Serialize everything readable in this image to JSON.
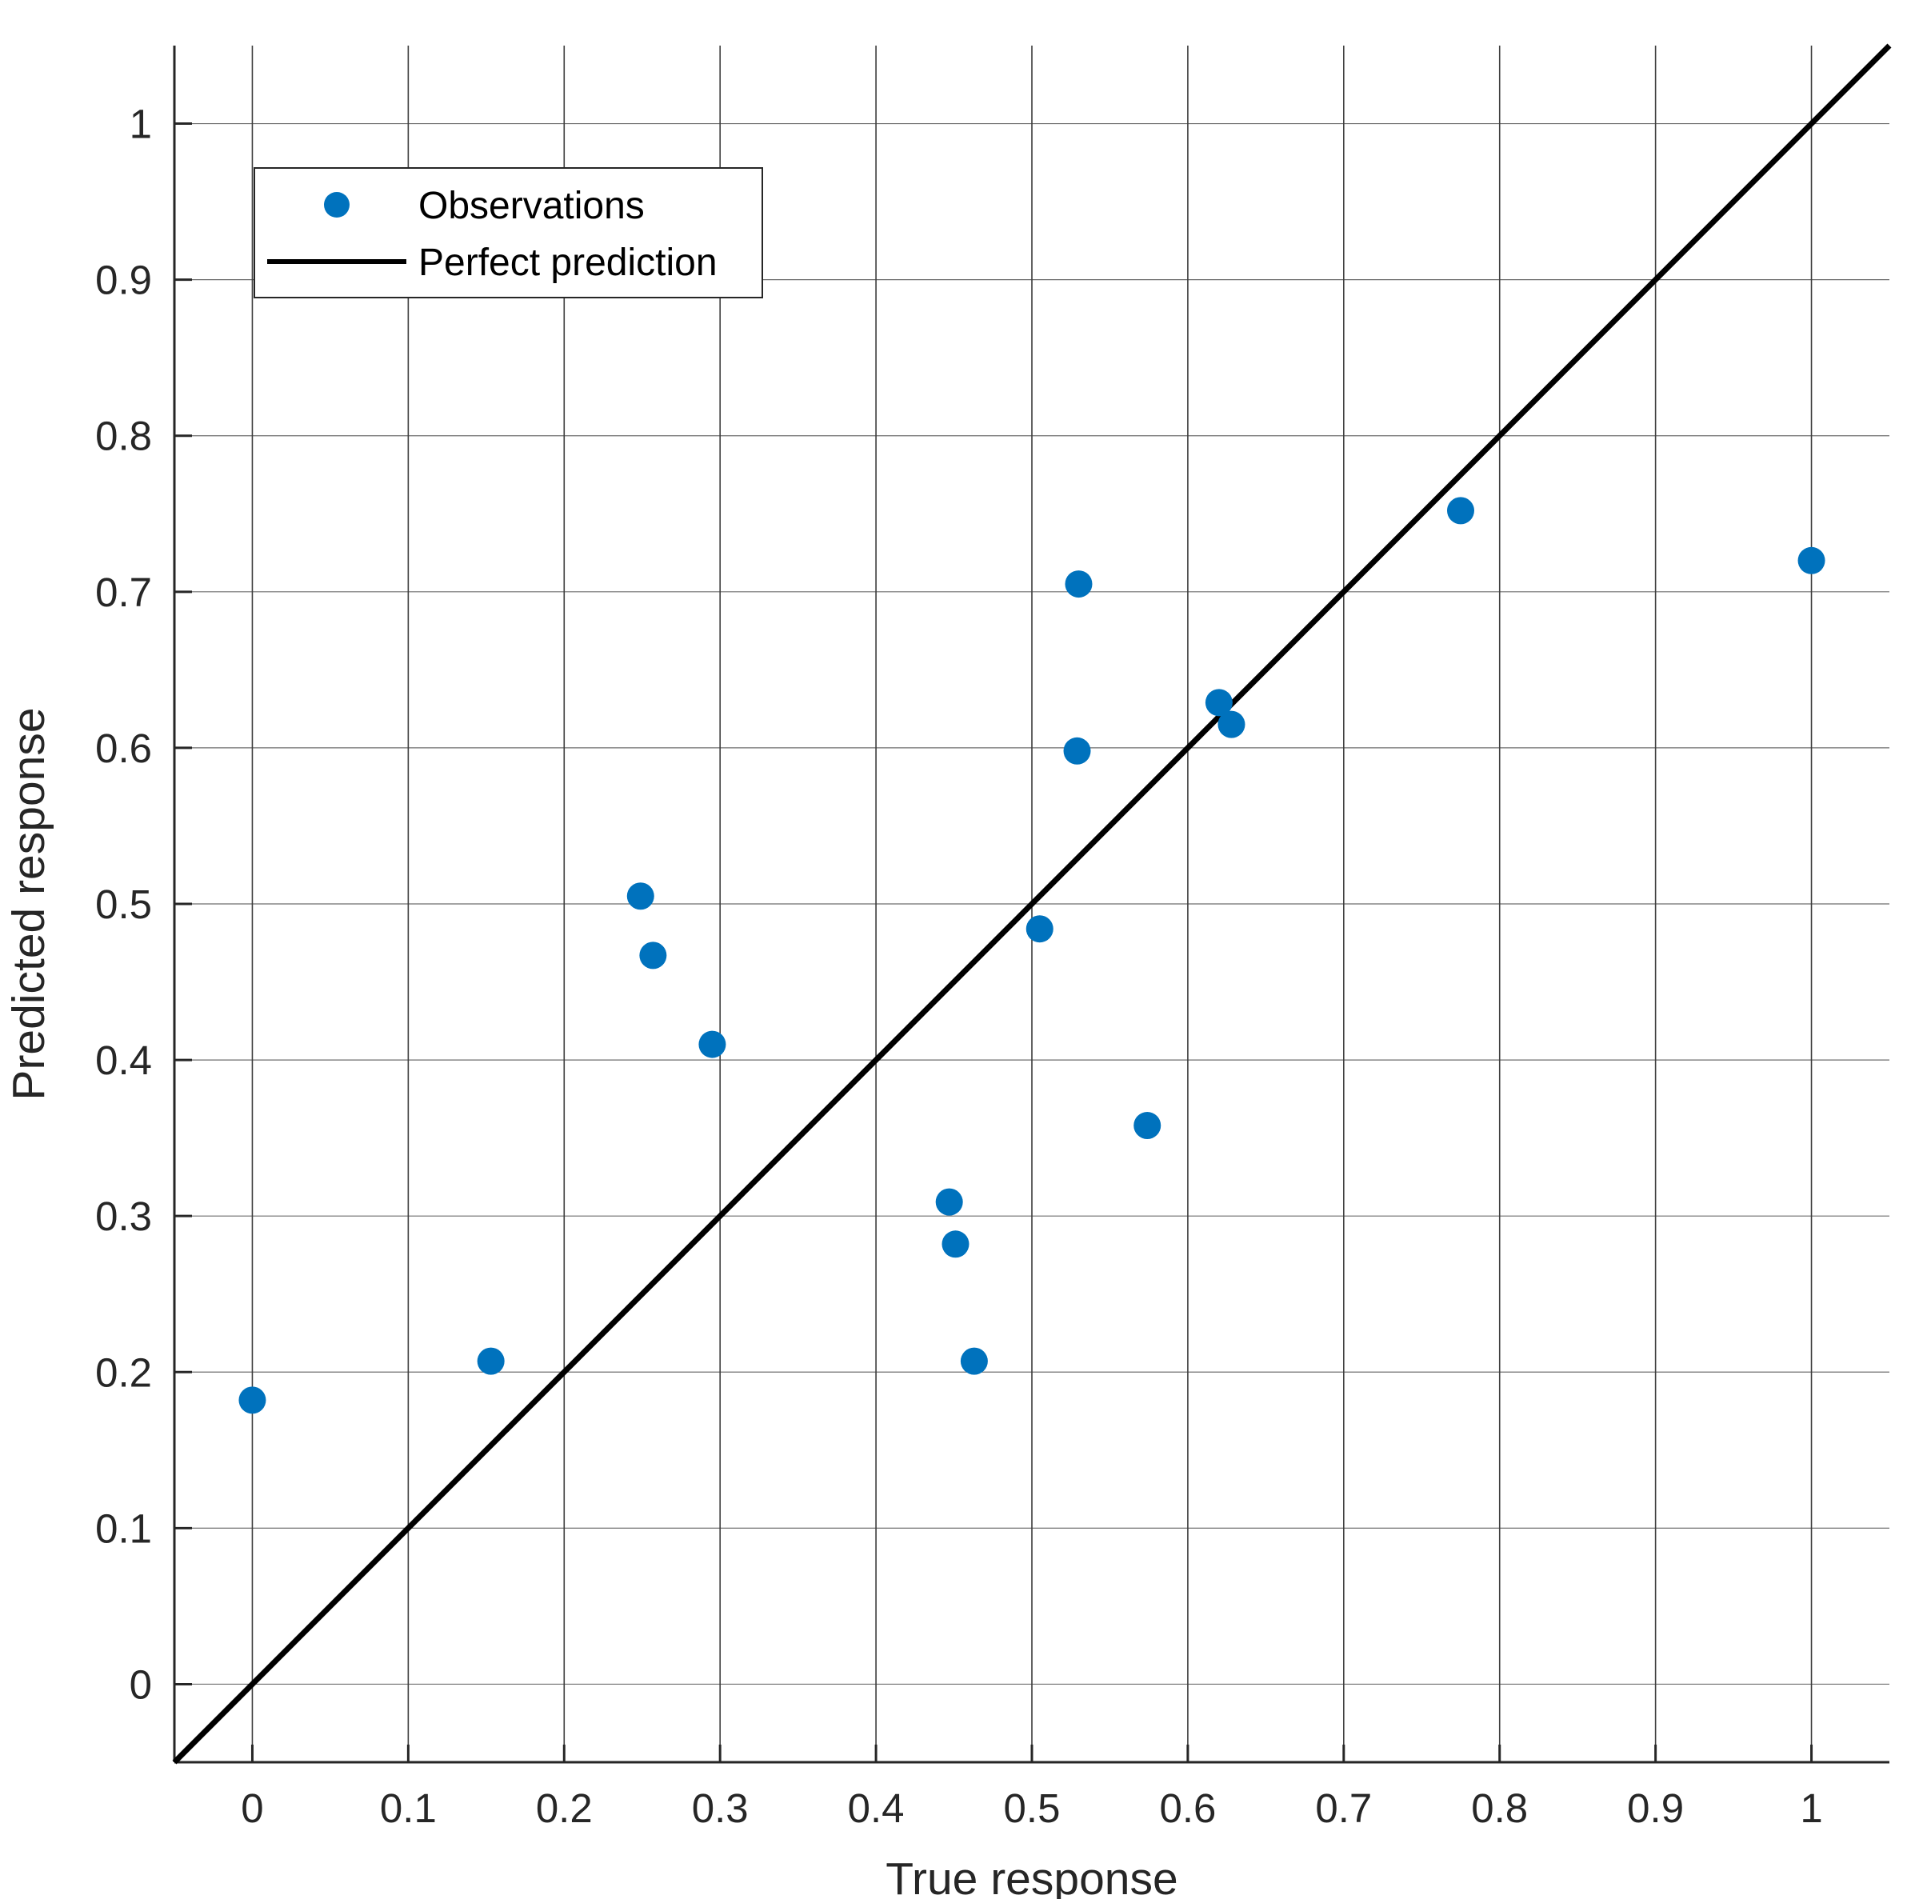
{
  "chart_data": {
    "type": "scatter",
    "xlabel": "True response",
    "ylabel": "Predicted response",
    "xlim": [
      -0.05,
      1.05
    ],
    "ylim": [
      -0.05,
      1.05
    ],
    "x_ticks": [
      "0",
      "0.1",
      "0.2",
      "0.3",
      "0.4",
      "0.5",
      "0.6",
      "0.7",
      "0.8",
      "0.9",
      "1"
    ],
    "y_ticks": [
      "0",
      "0.1",
      "0.2",
      "0.3",
      "0.4",
      "0.5",
      "0.6",
      "0.7",
      "0.8",
      "0.9",
      "1"
    ],
    "grid": true,
    "legend_position": "top-left",
    "series": [
      {
        "name": "Observations",
        "kind": "points",
        "color": "#0072BD",
        "points": [
          [
            0.0,
            0.182
          ],
          [
            0.153,
            0.207
          ],
          [
            0.249,
            0.505
          ],
          [
            0.257,
            0.467
          ],
          [
            0.295,
            0.41
          ],
          [
            0.447,
            0.309
          ],
          [
            0.451,
            0.282
          ],
          [
            0.463,
            0.207
          ],
          [
            0.505,
            0.484
          ],
          [
            0.529,
            0.598
          ],
          [
            0.53,
            0.705
          ],
          [
            0.574,
            0.358
          ],
          [
            0.62,
            0.629
          ],
          [
            0.628,
            0.615
          ],
          [
            0.775,
            0.752
          ],
          [
            1.0,
            0.72
          ]
        ]
      },
      {
        "name": "Perfect prediction",
        "kind": "line",
        "color": "#000000",
        "points": [
          [
            -0.05,
            -0.05
          ],
          [
            1.05,
            1.05
          ]
        ]
      }
    ]
  }
}
